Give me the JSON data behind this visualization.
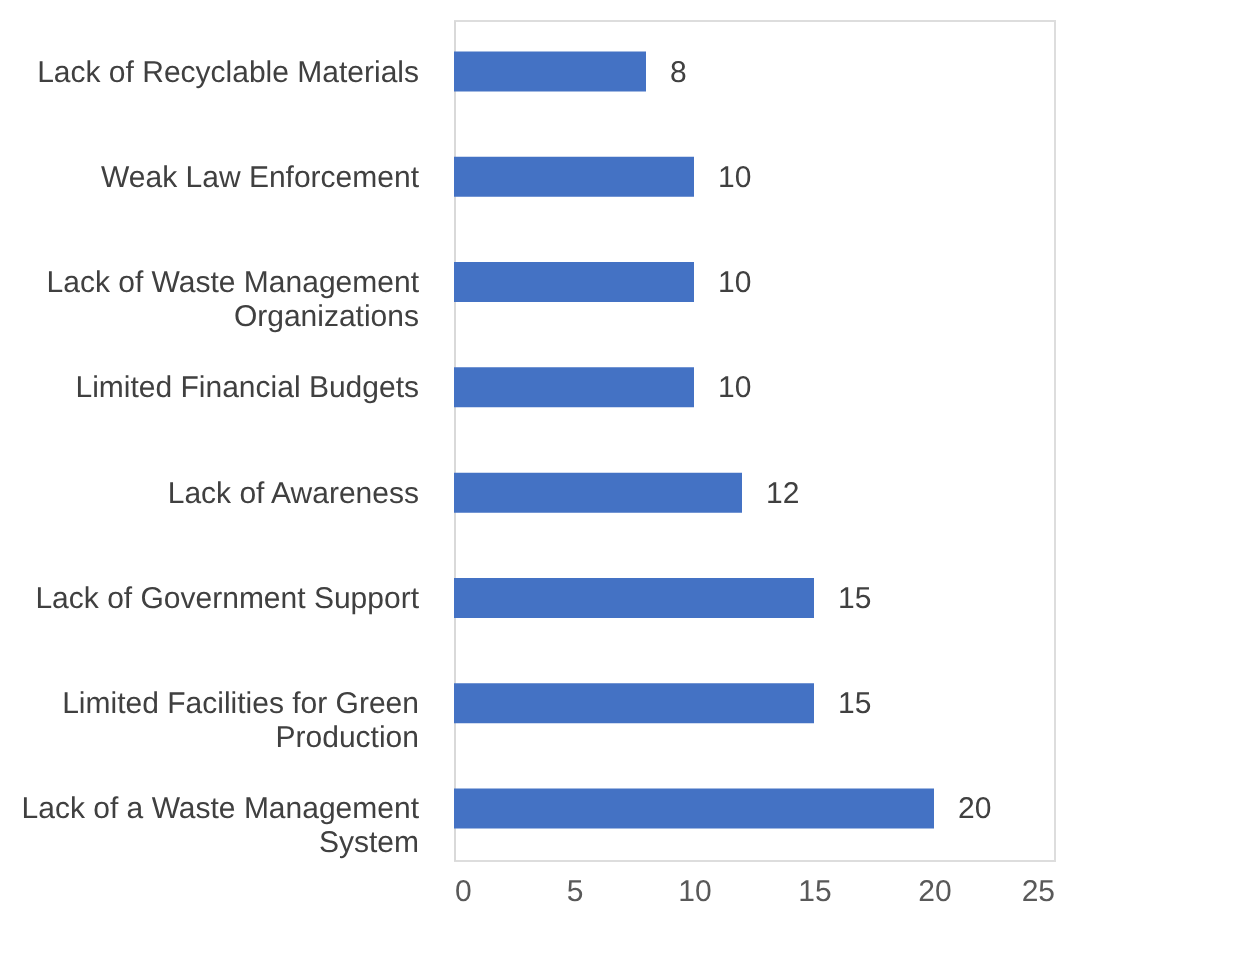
{
  "chart_data": {
    "type": "bar",
    "orientation": "horizontal",
    "categories": [
      "Lack of Recyclable Materials",
      "Weak Law Enforcement",
      "Lack of Waste Management Organizations",
      "Limited Financial Budgets",
      "Lack of Awareness",
      "Lack of Government Support",
      "Limited Facilities for Green Production",
      "Lack of a Waste Management System"
    ],
    "values": [
      8,
      10,
      10,
      10,
      12,
      15,
      15,
      20
    ],
    "color": "#4472c4",
    "xlim": [
      0,
      25
    ],
    "xticks": [
      0,
      5,
      10,
      15,
      20,
      25
    ],
    "grid": false,
    "data_labels": true
  }
}
